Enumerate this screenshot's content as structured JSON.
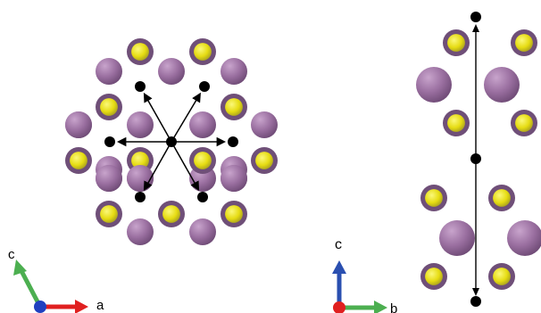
{
  "left_panel": {
    "axes": {
      "label_1": "c",
      "label_2": "a"
    },
    "colors": {
      "large_atom": "#9A6FA0",
      "small_atom": "#E8E020",
      "small_atom_rim": "#8F8A30",
      "site": "#000000",
      "axis_c": "#4CAF50",
      "axis_a": "#E02020",
      "origin": "#2040C0"
    }
  },
  "right_panel": {
    "axes": {
      "label_1": "c",
      "label_2": "b"
    },
    "colors": {
      "axis_c": "#2A4FB0",
      "axis_b": "#4CAF50",
      "origin": "#E02020"
    }
  }
}
